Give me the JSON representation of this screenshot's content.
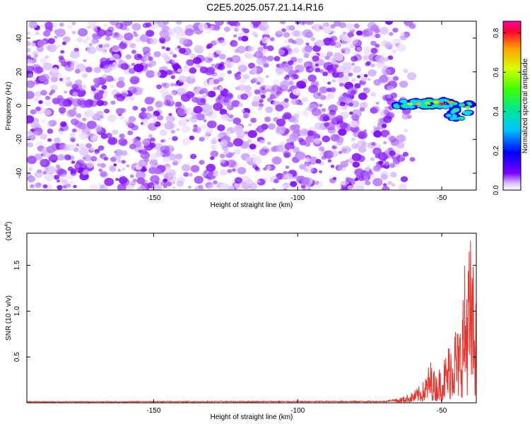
{
  "title": "C2E5.2025.057.21.14.R16",
  "colors": {
    "snr_line": "#e8322c",
    "frame": "#000000",
    "spectrogram_base": "#7a00ff"
  },
  "chart_data": [
    {
      "type": "heatmap",
      "name": "spectrogram",
      "xlabel": "Height of straight line (km)",
      "ylabel": "Frequency (Hz)",
      "xlim": [
        -194,
        -38
      ],
      "ylim": [
        -50,
        50
      ],
      "xticks": [
        -150,
        -100,
        -50
      ],
      "yticks": [
        -40,
        -20,
        0,
        20,
        40
      ],
      "colorbar": {
        "label": "Normalized spectral amplitude",
        "range": [
          0,
          0.86
        ],
        "ticks": [
          0.0,
          0.2,
          0.4,
          0.6,
          0.8
        ],
        "tick_labels": [
          "0.0",
          "0.2",
          "0.4",
          "0.6",
          "0.8"
        ],
        "colormap": "rainbow"
      },
      "regions": [
        {
          "desc": "diffuse noise",
          "x_range": [
            -194,
            -65
          ],
          "freq_range": [
            -50,
            50
          ],
          "amplitude": 0.05
        },
        {
          "desc": "signal band",
          "x_range": [
            -67,
            -40
          ],
          "freq_range": [
            -8,
            4
          ],
          "amplitude_peak": 0.86,
          "peak_x": -50
        }
      ]
    },
    {
      "type": "line",
      "name": "snr",
      "xlabel": "Height of straight line (km)",
      "ylabel": "SNR (10 * v/v)",
      "y_multiplier_label": "(x10",
      "y_multiplier_exp": "4",
      "xlim": [
        -194,
        -38
      ],
      "ylim": [
        0,
        18500
      ],
      "xticks": [
        -150,
        -100,
        -50
      ],
      "yticks": [
        5000,
        10000,
        15000
      ],
      "ytick_labels": [
        "0.5",
        "1.0",
        "1.5"
      ],
      "series": [
        {
          "color": "#e8322c",
          "envelope_x": [
            -194,
            -70,
            -65,
            -60,
            -58,
            -56,
            -54,
            -52,
            -50,
            -48,
            -46,
            -44,
            -42,
            -40,
            -38
          ],
          "envelope_y": [
            150,
            200,
            500,
            1200,
            1800,
            2500,
            4800,
            3200,
            4500,
            6000,
            9500,
            8000,
            15500,
            18400,
            12000
          ]
        }
      ]
    }
  ]
}
